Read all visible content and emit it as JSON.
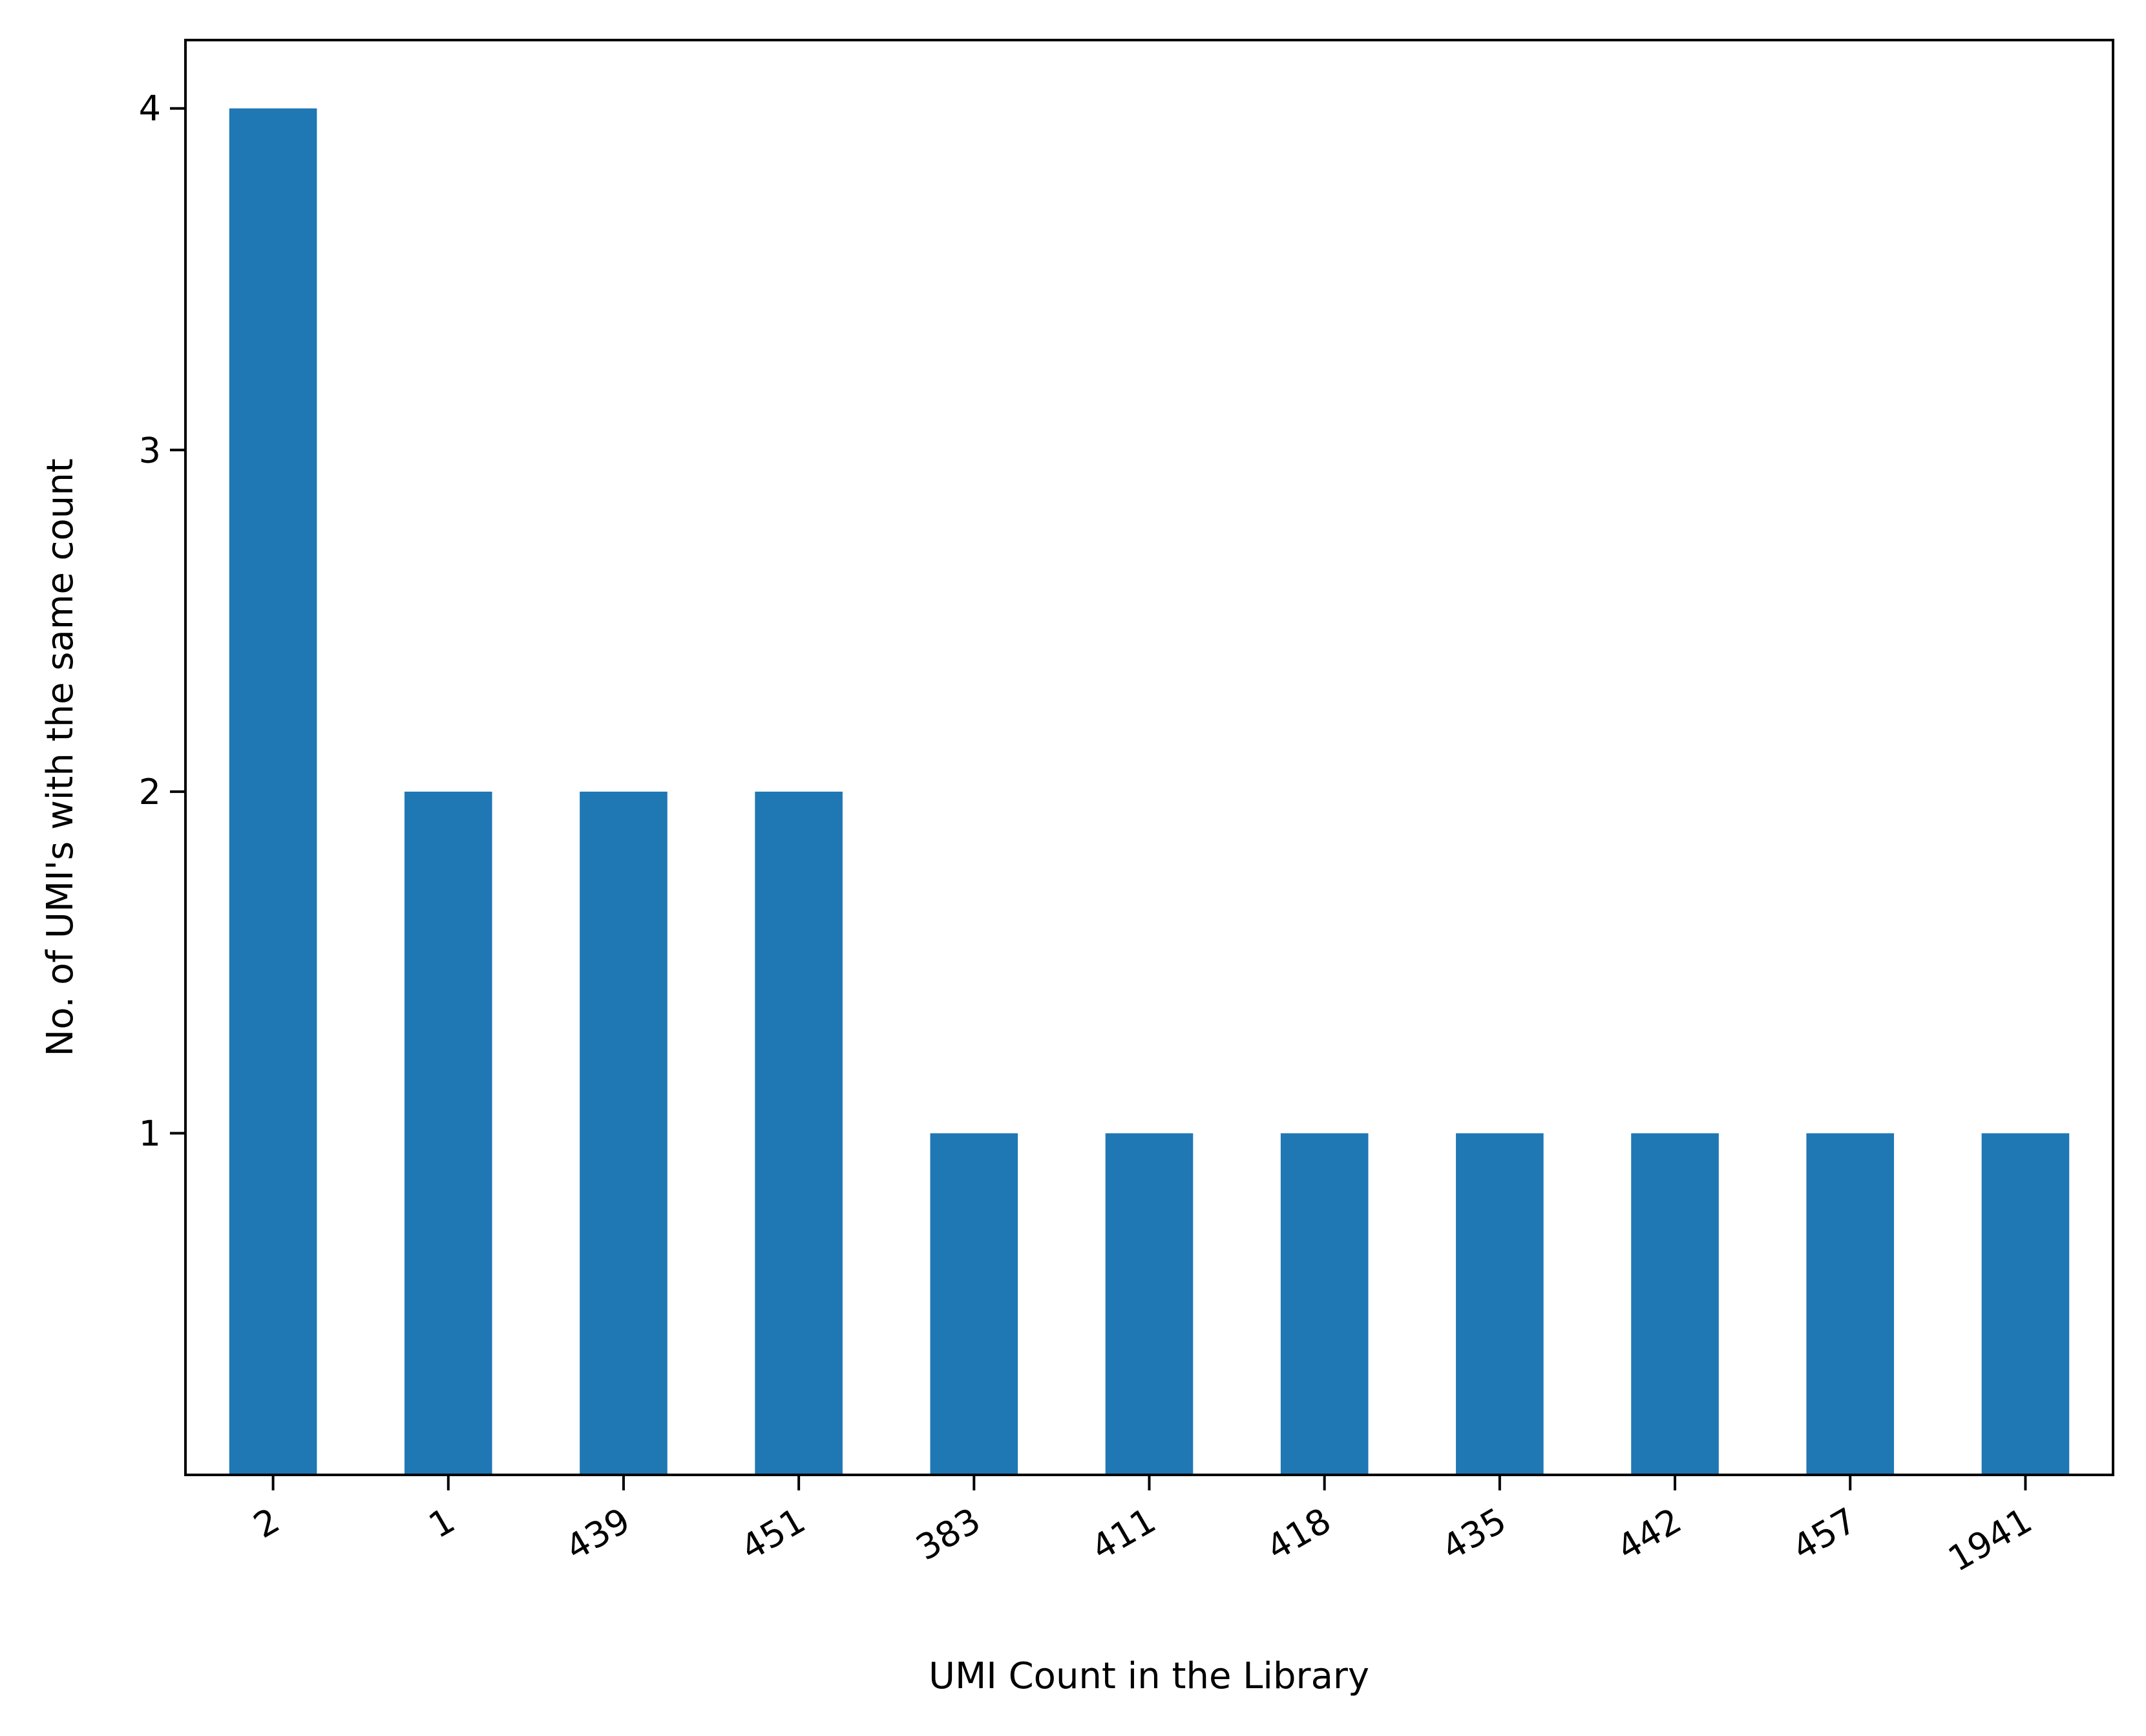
{
  "chart_data": {
    "type": "bar",
    "title": "",
    "xlabel": "UMI Count in the Library",
    "ylabel": "No. of UMI's with the same count",
    "categories": [
      "2",
      "1",
      "439",
      "451",
      "383",
      "411",
      "418",
      "435",
      "442",
      "457",
      "1941"
    ],
    "values": [
      4,
      2,
      2,
      2,
      1,
      1,
      1,
      1,
      1,
      1,
      1
    ],
    "ylim": [
      0,
      4.2
    ],
    "yticks": [
      1,
      2,
      3,
      4
    ],
    "grid": false,
    "legend": "none",
    "bar_color": "#1f77b4"
  }
}
